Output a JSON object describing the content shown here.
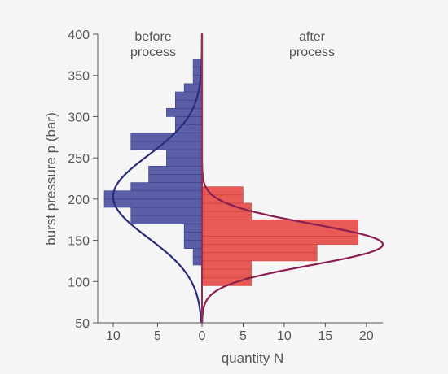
{
  "chart_data": {
    "type": "bar",
    "orientation": "horizontal-back-to-back",
    "title": "",
    "ylabel": "burst pressure p (bar)",
    "xlabel": "quantity N",
    "ylim": [
      50,
      400
    ],
    "y_ticks": [
      50,
      100,
      150,
      200,
      250,
      300,
      350,
      400
    ],
    "x_ticks_left": [
      10,
      5,
      0
    ],
    "x_ticks_right": [
      5,
      10,
      15,
      20
    ],
    "x_tick_labels": [
      "10",
      "5",
      "0",
      "5",
      "10",
      "15",
      "20"
    ],
    "xlim_left": [
      0,
      11
    ],
    "xlim_right": [
      0,
      22
    ],
    "annotations": [
      "before\nprocess",
      "after\nprocess"
    ],
    "series": [
      {
        "side": "left",
        "annotation": "before process",
        "color": "#5a5fa8",
        "curve_color": "#2a2d78",
        "bins": [
          {
            "y0": 120,
            "y1": 130,
            "value": 1
          },
          {
            "y0": 130,
            "y1": 140,
            "value": 1
          },
          {
            "y0": 140,
            "y1": 150,
            "value": 2
          },
          {
            "y0": 150,
            "y1": 160,
            "value": 2
          },
          {
            "y0": 160,
            "y1": 170,
            "value": 2
          },
          {
            "y0": 170,
            "y1": 180,
            "value": 8
          },
          {
            "y0": 180,
            "y1": 190,
            "value": 8
          },
          {
            "y0": 190,
            "y1": 200,
            "value": 11
          },
          {
            "y0": 200,
            "y1": 210,
            "value": 11
          },
          {
            "y0": 210,
            "y1": 220,
            "value": 8
          },
          {
            "y0": 220,
            "y1": 230,
            "value": 6
          },
          {
            "y0": 230,
            "y1": 240,
            "value": 6
          },
          {
            "y0": 240,
            "y1": 250,
            "value": 4
          },
          {
            "y0": 250,
            "y1": 260,
            "value": 4
          },
          {
            "y0": 260,
            "y1": 270,
            "value": 8
          },
          {
            "y0": 270,
            "y1": 280,
            "value": 8
          },
          {
            "y0": 280,
            "y1": 290,
            "value": 3
          },
          {
            "y0": 290,
            "y1": 300,
            "value": 3
          },
          {
            "y0": 300,
            "y1": 310,
            "value": 4
          },
          {
            "y0": 310,
            "y1": 320,
            "value": 3
          },
          {
            "y0": 320,
            "y1": 330,
            "value": 3
          },
          {
            "y0": 330,
            "y1": 340,
            "value": 2
          },
          {
            "y0": 340,
            "y1": 350,
            "value": 1
          },
          {
            "y0": 350,
            "y1": 360,
            "value": 1
          },
          {
            "y0": 360,
            "y1": 370,
            "value": 1
          }
        ],
        "curve": {
          "mean": 203,
          "sd": 50,
          "peak": 10
        }
      },
      {
        "side": "right",
        "annotation": "after process",
        "color": "#e85a55",
        "curve_color": "#8a1f52",
        "bins": [
          {
            "y0": 95,
            "y1": 105,
            "value": 6
          },
          {
            "y0": 105,
            "y1": 115,
            "value": 6
          },
          {
            "y0": 115,
            "y1": 125,
            "value": 6
          },
          {
            "y0": 125,
            "y1": 135,
            "value": 14
          },
          {
            "y0": 135,
            "y1": 145,
            "value": 14
          },
          {
            "y0": 145,
            "y1": 155,
            "value": 19
          },
          {
            "y0": 155,
            "y1": 165,
            "value": 19
          },
          {
            "y0": 165,
            "y1": 175,
            "value": 19
          },
          {
            "y0": 175,
            "y1": 185,
            "value": 6
          },
          {
            "y0": 185,
            "y1": 195,
            "value": 6
          },
          {
            "y0": 195,
            "y1": 205,
            "value": 5
          },
          {
            "y0": 205,
            "y1": 215,
            "value": 5
          }
        ],
        "curve": {
          "mean": 145,
          "sd": 25,
          "peak": 22
        }
      }
    ]
  }
}
